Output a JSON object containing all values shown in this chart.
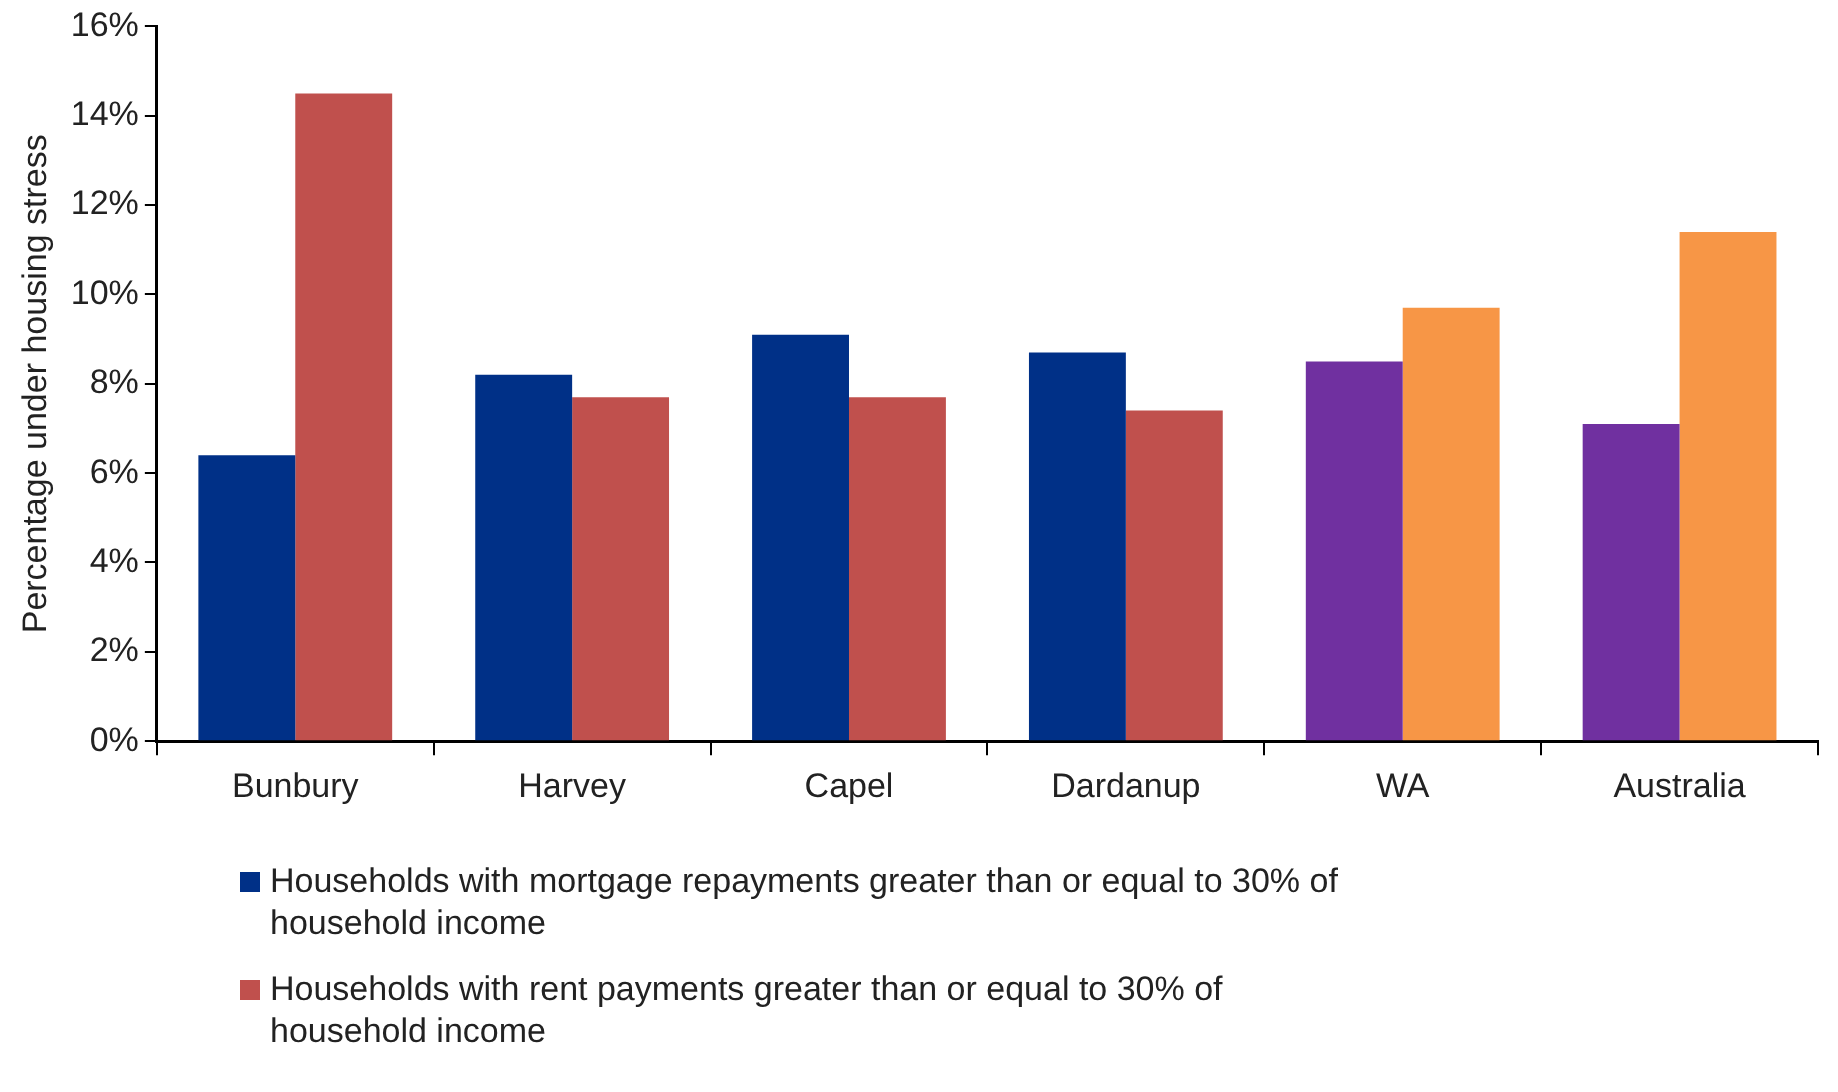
{
  "chart_data": {
    "type": "bar",
    "ylabel": "Percentage under housing stress",
    "categories": [
      "Bunbury",
      "Harvey",
      "Capel",
      "Dardanup",
      "WA",
      "Australia"
    ],
    "series": [
      {
        "name": "Households with mortgage repayments greater than or equal to 30% of household income",
        "color": "#003087",
        "colors": [
          "#003087",
          "#003087",
          "#003087",
          "#003087",
          "#7030a0",
          "#7030a0"
        ],
        "values": [
          6.4,
          8.2,
          9.1,
          8.7,
          8.5,
          7.1
        ]
      },
      {
        "name": "Households with rent payments greater than or equal to 30% of household income",
        "color": "#c0504d",
        "colors": [
          "#c0504d",
          "#c0504d",
          "#c0504d",
          "#c0504d",
          "#f79646",
          "#f79646"
        ],
        "values": [
          14.5,
          7.7,
          7.7,
          7.4,
          9.7,
          11.4
        ]
      }
    ],
    "ylim": [
      0,
      16
    ],
    "yticks": [
      {
        "value": 0,
        "label": "0%"
      },
      {
        "value": 2,
        "label": "2%"
      },
      {
        "value": 4,
        "label": "4%"
      },
      {
        "value": 6,
        "label": "6%"
      },
      {
        "value": 8,
        "label": "8%"
      },
      {
        "value": 10,
        "label": "10%"
      },
      {
        "value": 12,
        "label": "12%"
      },
      {
        "value": 14,
        "label": "14%"
      },
      {
        "value": 16,
        "label": "16%"
      }
    ],
    "grid": false,
    "legend": "bottom"
  }
}
